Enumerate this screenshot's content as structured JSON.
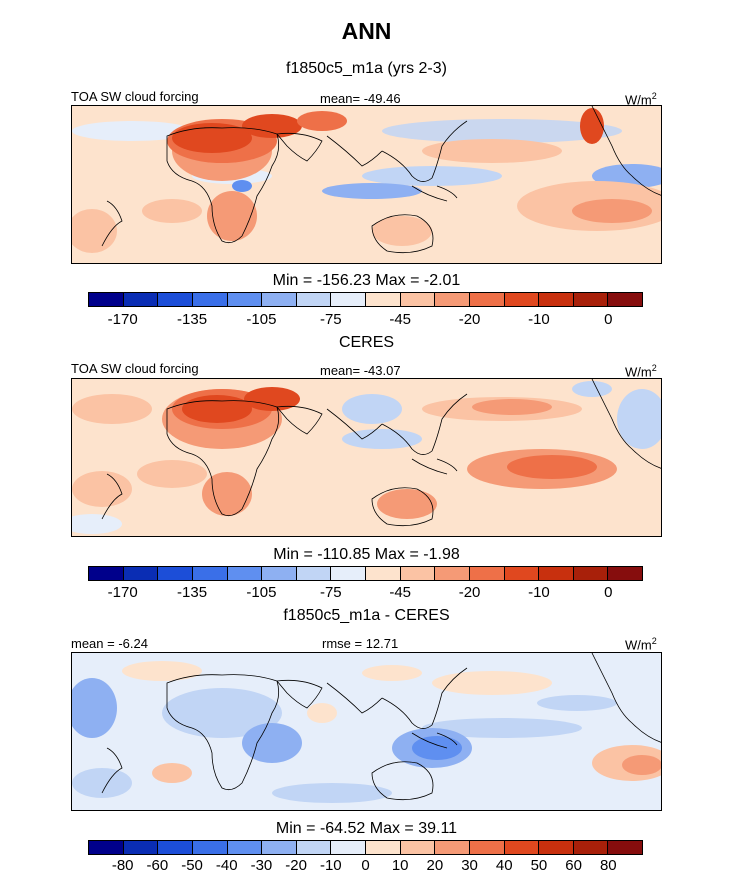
{
  "figure": {
    "title": "ANN"
  },
  "panels": [
    {
      "title": "f1850c5_m1a (yrs 2-3)",
      "left_label": "TOA SW cloud forcing",
      "center_label": "mean= -49.46",
      "units": "W/m",
      "units_sup": "2",
      "stats": "Min = -156.23 Max =  -2.01",
      "scale": "abs"
    },
    {
      "title": "CERES",
      "left_label": "TOA SW cloud forcing",
      "center_label": "mean= -43.07",
      "units": "W/m",
      "units_sup": "2",
      "stats": "Min = -110.85 Max =  -1.98",
      "scale": "abs"
    },
    {
      "title": "f1850c5_m1a - CERES",
      "left_label": "mean =  -6.24",
      "center_label": "rmse =  12.71",
      "units": "W/m",
      "units_sup": "2",
      "stats": "Min = -64.52 Max =  39.11",
      "scale": "diff"
    }
  ],
  "colorbars": {
    "abs": {
      "colors": [
        "#00008b",
        "#0a2db4",
        "#1c4ed8",
        "#3a6fe8",
        "#5f8ff0",
        "#8eb0f2",
        "#c1d5f5",
        "#e6eefa",
        "#fde3cd",
        "#fbc3a4",
        "#f59a76",
        "#ee7048",
        "#e0481f",
        "#c8300e",
        "#a8200a",
        "#860d0d"
      ],
      "ticks": [
        "-170",
        "-135",
        "-105",
        "-75",
        "-45",
        "-20",
        "-10",
        "0"
      ]
    },
    "diff": {
      "colors": [
        "#00008b",
        "#0a2db4",
        "#1c4ed8",
        "#3a6fe8",
        "#5f8ff0",
        "#8eb0f2",
        "#c1d5f5",
        "#e6eefa",
        "#fde3cd",
        "#fbc3a4",
        "#f59a76",
        "#ee7048",
        "#e0481f",
        "#c8300e",
        "#a8200a",
        "#860d0d"
      ],
      "ticks": [
        "-80",
        "-60",
        "-50",
        "-40",
        "-30",
        "-20",
        "-10",
        "0",
        "10",
        "20",
        "30",
        "40",
        "50",
        "60",
        "80"
      ]
    }
  }
}
